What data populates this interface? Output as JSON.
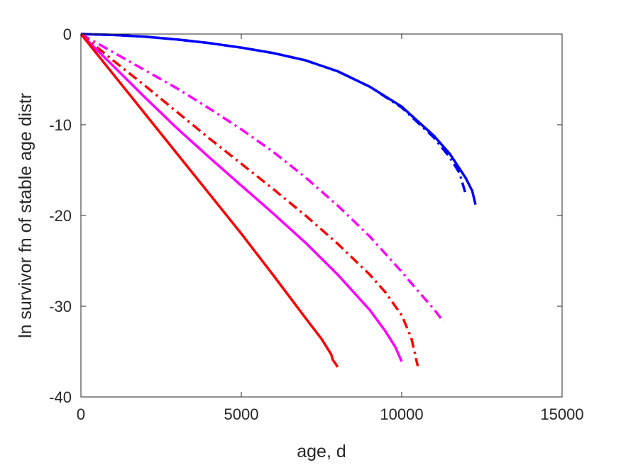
{
  "chart_data": {
    "type": "line",
    "title": "",
    "xlabel": "age, d",
    "ylabel": "ln survivor fn of stable age distr",
    "xlim": [
      0,
      15000
    ],
    "ylim": [
      -40,
      0
    ],
    "xticks": [
      0,
      5000,
      10000,
      15000
    ],
    "yticks": [
      0,
      -10,
      -20,
      -30,
      -40
    ],
    "grid": false,
    "legend": "none",
    "series": [
      {
        "color": "#0000ff",
        "style": "solid",
        "x": [
          0,
          1000,
          2000,
          3000,
          4000,
          5000,
          6000,
          7000,
          8000,
          9000,
          10000,
          11000,
          11500,
          12000,
          12200,
          12300
        ],
        "y": [
          0,
          -0.1,
          -0.3,
          -0.6,
          -1.0,
          -1.5,
          -2.1,
          -2.9,
          -4.1,
          -5.8,
          -8.0,
          -11.2,
          -13.2,
          -15.9,
          -17.3,
          -18.8
        ]
      },
      {
        "color": "#0000ff",
        "style": "dashdot",
        "x": [
          0,
          1000,
          2000,
          3000,
          4000,
          5000,
          6000,
          7000,
          8000,
          9000,
          10000,
          11000,
          11500,
          11800,
          12000
        ],
        "y": [
          0,
          -0.1,
          -0.3,
          -0.6,
          -1.0,
          -1.5,
          -2.1,
          -2.9,
          -4.1,
          -5.8,
          -8.1,
          -11.4,
          -13.6,
          -15.3,
          -17.7
        ]
      },
      {
        "color": "#ff00ff",
        "style": "dashdot",
        "x": [
          0,
          1000,
          2000,
          3000,
          4000,
          5000,
          6000,
          7000,
          8000,
          9000,
          10000,
          10500,
          11000,
          11300
        ],
        "y": [
          0,
          -2.0,
          -4.0,
          -6.0,
          -8.2,
          -10.5,
          -13.0,
          -15.8,
          -18.9,
          -22.3,
          -26.2,
          -28.3,
          -30.3,
          -31.7
        ]
      },
      {
        "color": "#ff0000",
        "style": "dashdot",
        "x": [
          0,
          1000,
          2000,
          3000,
          4000,
          5000,
          6000,
          7000,
          8000,
          9000,
          9500,
          10000,
          10300,
          10500
        ],
        "y": [
          0,
          -2.9,
          -5.7,
          -8.6,
          -11.5,
          -14.3,
          -17.1,
          -20.0,
          -23.1,
          -26.5,
          -28.5,
          -31.0,
          -33.5,
          -36.6
        ]
      },
      {
        "color": "#ff00ff",
        "style": "solid",
        "x": [
          0,
          1000,
          2000,
          3000,
          4000,
          5000,
          6000,
          7000,
          8000,
          9000,
          9500,
          9800,
          10000
        ],
        "y": [
          0,
          -3.5,
          -7.0,
          -10.4,
          -13.6,
          -16.7,
          -19.8,
          -23.0,
          -26.5,
          -30.4,
          -32.8,
          -34.5,
          -36.1
        ]
      },
      {
        "color": "#ff0000",
        "style": "solid",
        "x": [
          0,
          1000,
          2000,
          3000,
          4000,
          5000,
          6000,
          7000,
          7500,
          7800,
          7850,
          7950,
          8000
        ],
        "y": [
          0,
          -4.4,
          -8.8,
          -13.2,
          -17.6,
          -22.0,
          -26.6,
          -31.3,
          -33.6,
          -35.3,
          -35.9,
          -36.4,
          -36.7
        ]
      }
    ]
  }
}
